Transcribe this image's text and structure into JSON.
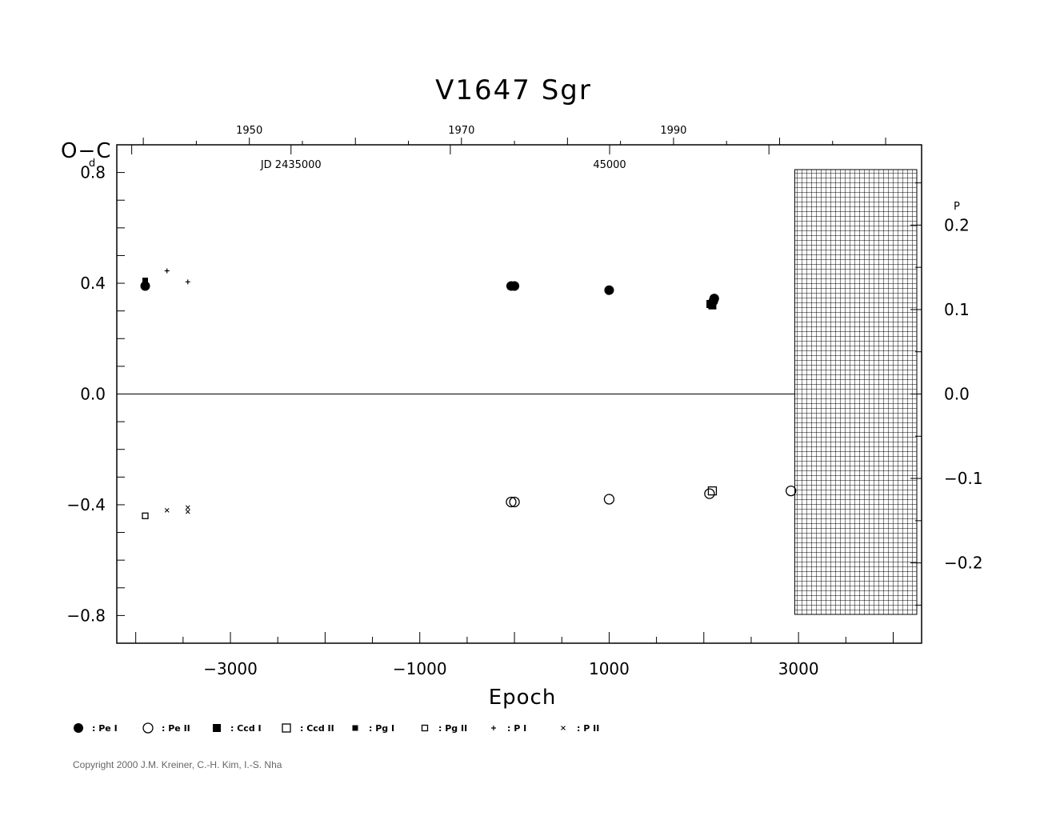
{
  "chart_data": {
    "type": "scatter",
    "title": "V1647  Sgr",
    "xlabel": "Epoch",
    "ylabel_left": "O−C",
    "ylabel_left_unit": "d",
    "ylabel_right_unit": "P",
    "xlim": [
      -4200,
      4300
    ],
    "ylim": [
      -0.9,
      0.9
    ],
    "x_ticks_major": [
      -3000,
      -1000,
      1000,
      3000
    ],
    "x_tick_labels": [
      "−3000",
      "−1000",
      "1000",
      "3000"
    ],
    "y_ticks_left": [
      0.8,
      0.4,
      0.0,
      -0.4,
      -0.8
    ],
    "y_tick_labels_left": [
      "0.8",
      "0.4",
      "0.0",
      "−0.4",
      "−0.8"
    ],
    "y_ticks_right": [
      0.2,
      0.1,
      0.0,
      -0.1,
      -0.2
    ],
    "y_tick_labels_right": [
      "0.2",
      "0.1",
      "0.0",
      "−0.1",
      "−0.2"
    ],
    "right_axis_ratio": 3.05,
    "top_axis_years": [
      {
        "label": "1950",
        "epoch": -2800
      },
      {
        "label": "1970",
        "epoch": -560
      },
      {
        "label": "1990",
        "epoch": 1680
      }
    ],
    "top_axis_jd": [
      {
        "label": "JD  2435000",
        "epoch": -2360
      },
      {
        "label": "45000",
        "epoch": 1005
      }
    ],
    "hatched_region_epoch": [
      2960,
      4300
    ],
    "series": [
      {
        "name": "Pe I",
        "marker": "filled-circle",
        "points": [
          [
            -3900,
            0.39
          ],
          [
            -35,
            0.39
          ],
          [
            0,
            0.39
          ],
          [
            1000,
            0.375
          ],
          [
            2100,
            0.335
          ],
          [
            2110,
            0.345
          ]
        ]
      },
      {
        "name": "Pe II",
        "marker": "open-circle",
        "points": [
          [
            -35,
            -0.39
          ],
          [
            0,
            -0.39
          ],
          [
            1000,
            -0.38
          ],
          [
            2060,
            -0.36
          ],
          [
            2920,
            -0.35
          ]
        ]
      },
      {
        "name": "Ccd I",
        "marker": "filled-square",
        "points": [
          [
            2070,
            0.325
          ],
          [
            2090,
            0.32
          ]
        ]
      },
      {
        "name": "Ccd II",
        "marker": "open-square",
        "points": [
          [
            2090,
            -0.35
          ]
        ]
      },
      {
        "name": "Pg I",
        "marker": "small-filled-square",
        "points": [
          [
            -3900,
            0.41
          ]
        ]
      },
      {
        "name": "Pg II",
        "marker": "small-open-square",
        "points": [
          [
            -3900,
            -0.44
          ]
        ]
      },
      {
        "name": "P I",
        "marker": "plus",
        "points": [
          [
            -3670,
            0.445
          ],
          [
            -3450,
            0.405
          ]
        ]
      },
      {
        "name": "P II",
        "marker": "cross",
        "points": [
          [
            -3670,
            -0.42
          ],
          [
            -3450,
            -0.41
          ],
          [
            -3450,
            -0.425
          ]
        ]
      }
    ]
  },
  "legend": [
    {
      "marker": "filled-circle",
      "label": ": Pe  I"
    },
    {
      "marker": "open-circle",
      "label": ": Pe  II"
    },
    {
      "marker": "filled-square",
      "label": ": Ccd  I"
    },
    {
      "marker": "open-square",
      "label": ": Ccd  II"
    },
    {
      "marker": "small-filled-square",
      "label": ": Pg  I"
    },
    {
      "marker": "small-open-square",
      "label": ": Pg  II"
    },
    {
      "marker": "plus",
      "label": ": P  I"
    },
    {
      "marker": "cross",
      "label": ": P  II"
    }
  ],
  "copyright": "Copyright 2000 J.M. Kreiner, C.-H. Kim, I.-S. Nha"
}
